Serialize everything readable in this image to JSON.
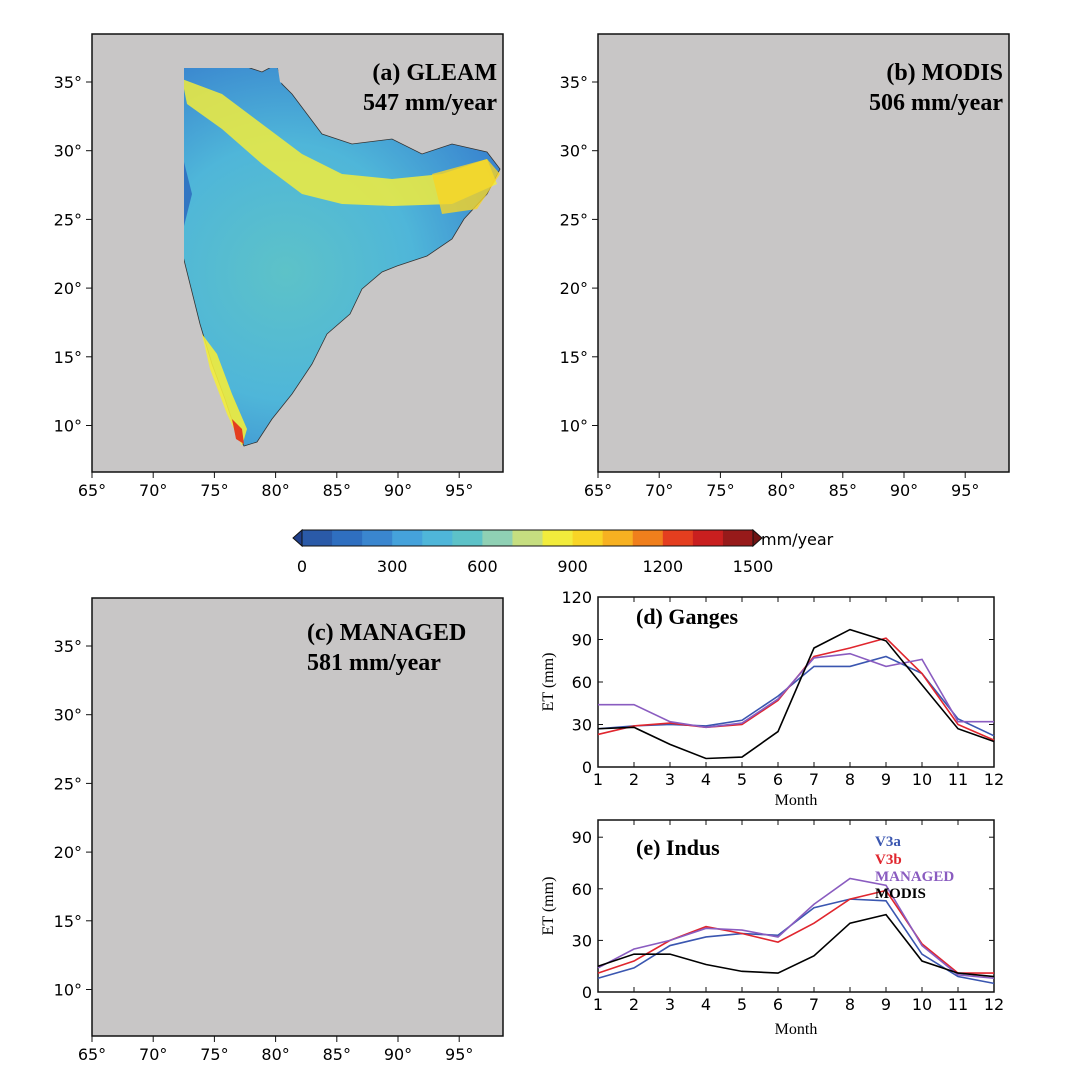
{
  "colorbar": {
    "unit": "mm/year",
    "ticks": [
      "0",
      "300",
      "600",
      "900",
      "1200",
      "1500"
    ],
    "min": 0,
    "max": 1500,
    "colors": [
      "#2a5aa8",
      "#2f6fc0",
      "#3a86cf",
      "#45a2db",
      "#4fb6d9",
      "#5dc2c8",
      "#8fd0b4",
      "#c6de80",
      "#f2ec3c",
      "#f8d526",
      "#f7b121",
      "#f07f1c",
      "#e43e1f",
      "#c91f1f",
      "#971a1a"
    ]
  },
  "maps": [
    {
      "id": "a",
      "title": "(a) GLEAM",
      "value": "547 mm/year"
    },
    {
      "id": "b",
      "title": "(b) MODIS",
      "value": "506 mm/year"
    },
    {
      "id": "c",
      "title": "(c) MANAGED",
      "value": "581 mm/year"
    }
  ],
  "map_axes": {
    "lon_ticks": [
      "65°",
      "70°",
      "75°",
      "80°",
      "85°",
      "90°",
      "95°"
    ],
    "lat_ticks": [
      "35°",
      "30°",
      "25°",
      "20°",
      "15°",
      "10°"
    ]
  },
  "chart_data": [
    {
      "type": "line",
      "title": "(d) Ganges",
      "xlabel": "Month",
      "ylabel": "ET (mm)",
      "x": [
        1,
        2,
        3,
        4,
        5,
        6,
        7,
        8,
        9,
        10,
        11,
        12
      ],
      "ylim": [
        0,
        120
      ],
      "yticks": [
        0,
        30,
        60,
        90,
        120
      ],
      "series": [
        {
          "name": "V3a",
          "color": "#3a56b0",
          "values": [
            27,
            29,
            30,
            29,
            33,
            50,
            71,
            71,
            78,
            66,
            34,
            22
          ]
        },
        {
          "name": "V3b",
          "color": "#e0262e",
          "values": [
            23,
            29,
            31,
            28,
            30,
            47,
            78,
            84,
            91,
            66,
            30,
            19
          ]
        },
        {
          "name": "MANAGED",
          "color": "#8a5cc0",
          "values": [
            44,
            44,
            32,
            28,
            31,
            48,
            77,
            80,
            71,
            76,
            32,
            32
          ]
        },
        {
          "name": "MODIS",
          "color": "#000000",
          "values": [
            27,
            28,
            16,
            6,
            7,
            25,
            84,
            97,
            89,
            58,
            27,
            18
          ]
        }
      ]
    },
    {
      "type": "line",
      "title": "(e) Indus",
      "xlabel": "Month",
      "ylabel": "ET (mm)",
      "x": [
        1,
        2,
        3,
        4,
        5,
        6,
        7,
        8,
        9,
        10,
        11,
        12
      ],
      "ylim": [
        0,
        100
      ],
      "yticks": [
        0,
        30,
        60,
        90
      ],
      "legend": [
        "V3a",
        "V3b",
        "MANAGED",
        "MODIS"
      ],
      "series": [
        {
          "name": "V3a",
          "color": "#3a56b0",
          "values": [
            8,
            14,
            27,
            32,
            34,
            33,
            49,
            54,
            53,
            22,
            9,
            5
          ]
        },
        {
          "name": "V3b",
          "color": "#e0262e",
          "values": [
            11,
            18,
            30,
            38,
            34,
            29,
            40,
            54,
            59,
            28,
            11,
            11
          ]
        },
        {
          "name": "MANAGED",
          "color": "#8a5cc0",
          "values": [
            14,
            25,
            30,
            37,
            36,
            32,
            51,
            66,
            62,
            27,
            10,
            8
          ]
        },
        {
          "name": "MODIS",
          "color": "#000000",
          "values": [
            15,
            22,
            22,
            16,
            12,
            11,
            21,
            40,
            45,
            18,
            11,
            9
          ]
        }
      ]
    }
  ]
}
